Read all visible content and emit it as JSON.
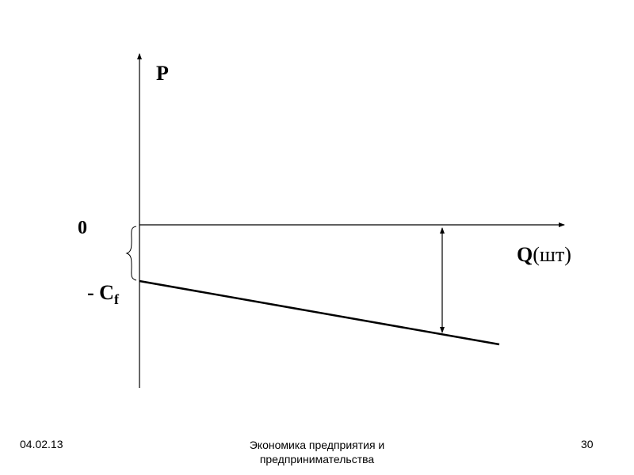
{
  "diagram": {
    "y_axis_label": "P",
    "x_axis_label_main": "Q",
    "x_axis_label_unit": "(шт)",
    "zero_label": "0",
    "intercept_label_prefix": "- C",
    "intercept_label_sub": "f",
    "colors": {
      "line": "#000000",
      "axis": "#000000"
    }
  },
  "footer": {
    "date": "04.02.13",
    "title_line1": "Экономика предприятия и",
    "title_line2": "предпринимательства",
    "page_number": "30"
  }
}
